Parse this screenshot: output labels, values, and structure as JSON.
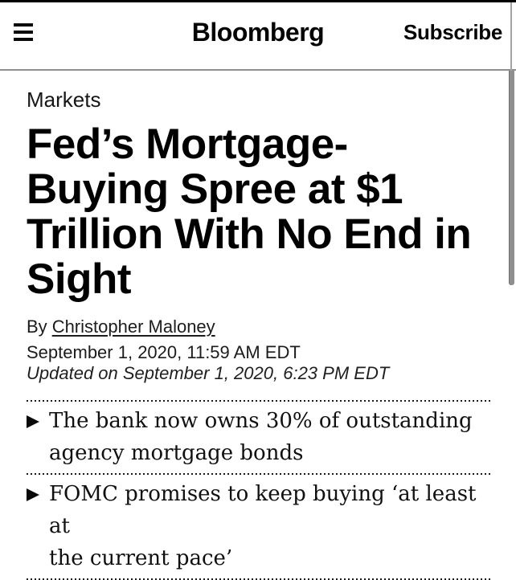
{
  "colors": {
    "background": "#ffffff",
    "text": "#000000",
    "header_divider": "#8f8f8f",
    "scrollbar_thumb": "#8f8f8f"
  },
  "header": {
    "logo": "Bloomberg",
    "subscribe_label": "Subscribe",
    "menu_icon": "hamburger-icon"
  },
  "article": {
    "section": "Markets",
    "headline": "Fed’s Mortgage-\nBuying Spree at $1\nTrillion With No End in\nSight",
    "byline_prefix": "By",
    "author": "Christopher Maloney",
    "published": "September 1, 2020, 11:59 AM EDT",
    "updated": "Updated on September 1, 2020, 6:23 PM EDT",
    "bullets": [
      {
        "text": "The bank now owns 30% of outstanding\nagency mortgage bonds"
      },
      {
        "text": "FOMC promises to keep buying ‘at least at\nthe current pace’"
      }
    ]
  }
}
